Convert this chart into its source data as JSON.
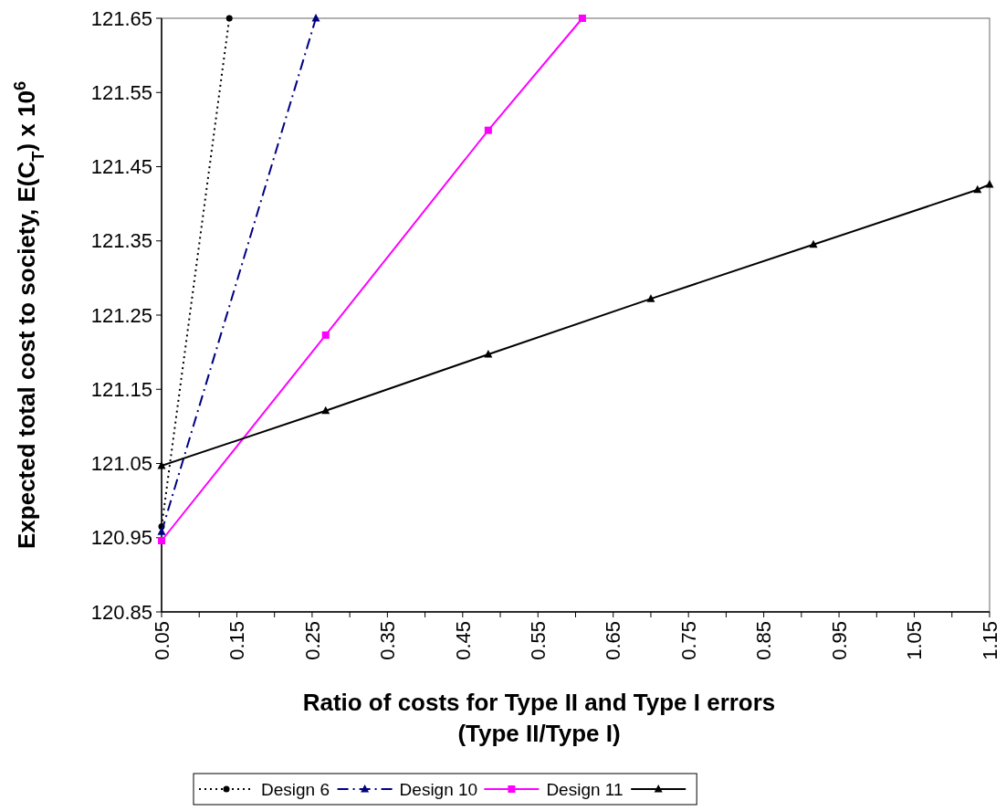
{
  "chart_data": {
    "type": "line",
    "xlabel": "Ratio of costs for Type II and Type I errors\n(Type II/Type I)",
    "ylabel": "Expected total cost to society, E(C$_{T}$) x 10$^{6}$",
    "xlim": [
      0.05,
      1.15
    ],
    "xticks": [
      0.05,
      {
        "value": 0.1,
        "label": null
      },
      0.15,
      {
        "value": 0.2,
        "label": null
      },
      0.25,
      {
        "value": 0.3,
        "label": null
      },
      0.35,
      {
        "value": 0.4,
        "label": null
      },
      0.45,
      {
        "value": 0.5,
        "label": null
      },
      0.55,
      {
        "value": 0.6,
        "label": null
      },
      0.65,
      {
        "value": 0.7,
        "label": null
      },
      0.75,
      {
        "value": 0.8,
        "label": null
      },
      0.85,
      {
        "value": 0.9,
        "label": null
      },
      0.95,
      {
        "value": 1.0,
        "label": null
      },
      1.05,
      {
        "value": 1.1,
        "label": null
      },
      1.15
    ],
    "ylim": [
      120.85,
      121.65
    ],
    "yticks": [
      120.85,
      120.95,
      121.05,
      121.15,
      121.25,
      121.35,
      121.45,
      121.55,
      121.65
    ],
    "grid": false,
    "legend": "bottom",
    "series": [
      {
        "name": "Design 6",
        "color": "#000000",
        "marker": "circle",
        "line_style": "dotted",
        "x": [
          0.05,
          0.14
        ],
        "values": [
          120.965,
          121.65
        ]
      },
      {
        "name": "Design 10",
        "color": "#000080",
        "marker": "triangle",
        "line_style": "dashed",
        "x": [
          0.05,
          0.255
        ],
        "values": [
          120.958,
          121.65
        ]
      },
      {
        "name": "Design 11",
        "color": "#ff00ff",
        "marker": "square",
        "line_style": "solid",
        "x": [
          0.05,
          0.268,
          0.484,
          0.609
        ],
        "values": [
          120.946,
          121.223,
          121.499,
          121.65
        ]
      },
      {
        "color": "#000000",
        "marker": "triangle",
        "line_style": "solid",
        "x": [
          0.05,
          0.268,
          0.484,
          0.7,
          0.916,
          1.134,
          1.15
        ],
        "values": [
          121.047,
          121.121,
          121.197,
          121.272,
          121.345,
          121.419,
          121.426
        ]
      }
    ]
  }
}
